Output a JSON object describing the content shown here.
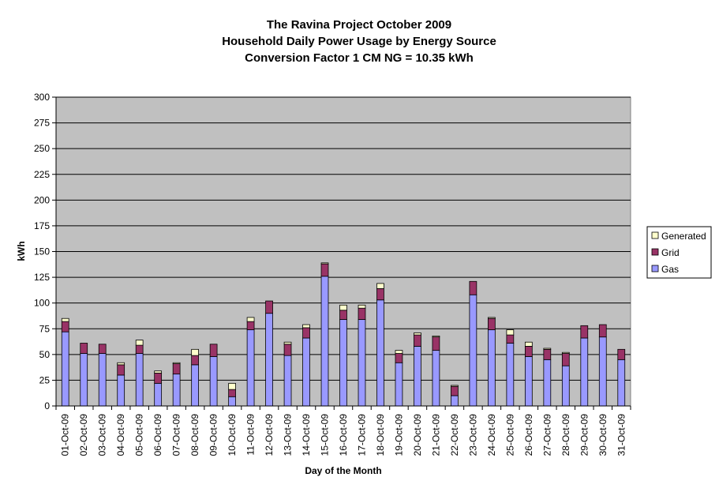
{
  "chart_data": {
    "type": "bar",
    "stacked": true,
    "title": [
      "The Ravina Project October 2009",
      "Household Daily Power Usage by Energy Source",
      "Conversion Factor 1 CM NG = 10.35 kWh"
    ],
    "xlabel": "Day of the Month",
    "ylabel": "kWh",
    "ylim": [
      0,
      300
    ],
    "yticks": [
      0,
      25,
      50,
      75,
      100,
      125,
      150,
      175,
      200,
      225,
      250,
      275,
      300
    ],
    "grid": true,
    "legend_position": "right",
    "categories": [
      "01-Oct-09",
      "02-Oct-09",
      "03-Oct-09",
      "04-Oct-09",
      "05-Oct-09",
      "06-Oct-09",
      "07-Oct-09",
      "08-Oct-09",
      "09-Oct-09",
      "10-Oct-09",
      "11-Oct-09",
      "12-Oct-09",
      "13-Oct-09",
      "14-Oct-09",
      "15-Oct-09",
      "16-Oct-09",
      "17-Oct-09",
      "18-Oct-09",
      "19-Oct-09",
      "20-Oct-09",
      "21-Oct-09",
      "22-Oct-09",
      "23-Oct-09",
      "24-Oct-09",
      "25-Oct-09",
      "26-Oct-09",
      "27-Oct-09",
      "28-Oct-09",
      "29-Oct-09",
      "30-Oct-09",
      "31-Oct-09"
    ],
    "series": [
      {
        "name": "Gas",
        "color": "#9999ff",
        "values": [
          72,
          51,
          51,
          30,
          51,
          22,
          31,
          40,
          48,
          9,
          74,
          90,
          49,
          66,
          126,
          84,
          84,
          103,
          42,
          58,
          54,
          10,
          108,
          74,
          61,
          48,
          45,
          39,
          66,
          67,
          45
        ]
      },
      {
        "name": "Grid",
        "color": "#993366",
        "values": [
          10,
          10,
          9,
          10,
          8,
          10,
          10,
          9,
          12,
          7,
          8,
          12,
          11,
          10,
          12,
          9,
          11,
          11,
          9,
          11,
          13,
          9,
          13,
          11,
          8,
          10,
          10,
          12,
          12,
          12,
          10
        ]
      },
      {
        "name": "Generated",
        "color": "#ffffcc",
        "values": [
          3,
          0,
          0,
          2,
          5,
          2,
          1,
          6,
          0,
          6,
          4,
          0,
          2,
          3,
          1,
          5,
          3,
          5,
          3,
          2,
          1,
          1,
          0,
          1,
          5,
          4,
          1,
          1,
          0,
          0,
          0
        ]
      }
    ]
  }
}
